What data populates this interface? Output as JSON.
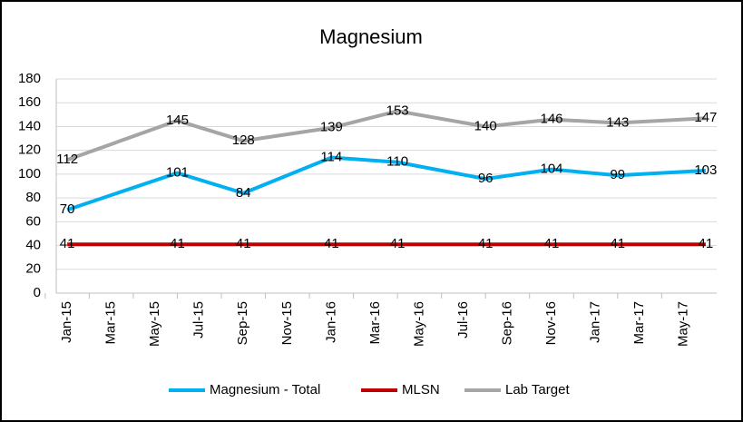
{
  "chart_data": {
    "type": "line",
    "title": "Magnesium",
    "x": [
      "2015-01",
      "2015-06",
      "2015-09",
      "2016-01",
      "2016-04",
      "2016-08",
      "2016-11",
      "2017-02",
      "2017-06"
    ],
    "xlim": [
      "2015-01",
      "2017-06"
    ],
    "xticks": [
      {
        "value": "2015-01",
        "label": "Jan-15"
      },
      {
        "value": "2015-03",
        "label": "Mar-15"
      },
      {
        "value": "2015-05",
        "label": "May-15"
      },
      {
        "value": "2015-07",
        "label": "Jul-15"
      },
      {
        "value": "2015-09",
        "label": "Sep-15"
      },
      {
        "value": "2015-11",
        "label": "Nov-15"
      },
      {
        "value": "2016-01",
        "label": "Jan-16"
      },
      {
        "value": "2016-03",
        "label": "Mar-16"
      },
      {
        "value": "2016-05",
        "label": "May-16"
      },
      {
        "value": "2016-07",
        "label": "Jul-16"
      },
      {
        "value": "2016-09",
        "label": "Sep-16"
      },
      {
        "value": "2016-11",
        "label": "Nov-16"
      },
      {
        "value": "2017-01",
        "label": "Jan-17"
      },
      {
        "value": "2017-03",
        "label": "Mar-17"
      },
      {
        "value": "2017-05",
        "label": "May-17"
      }
    ],
    "ylim": [
      0,
      180
    ],
    "yticks": [
      0,
      20,
      40,
      60,
      80,
      100,
      120,
      140,
      160,
      180
    ],
    "grid": true,
    "legend": "bottom",
    "series": [
      {
        "name": "Magnesium - Total",
        "color": "#00b0f0",
        "values": [
          70,
          101,
          84,
          114,
          110,
          96,
          104,
          99,
          103
        ]
      },
      {
        "name": "MLSN",
        "color": "#c00000",
        "values": [
          41,
          41,
          41,
          41,
          41,
          41,
          41,
          41,
          41
        ]
      },
      {
        "name": "Lab Target",
        "color": "#a5a5a5",
        "values": [
          112,
          145,
          128,
          139,
          153,
          140,
          146,
          143,
          147
        ]
      }
    ]
  }
}
